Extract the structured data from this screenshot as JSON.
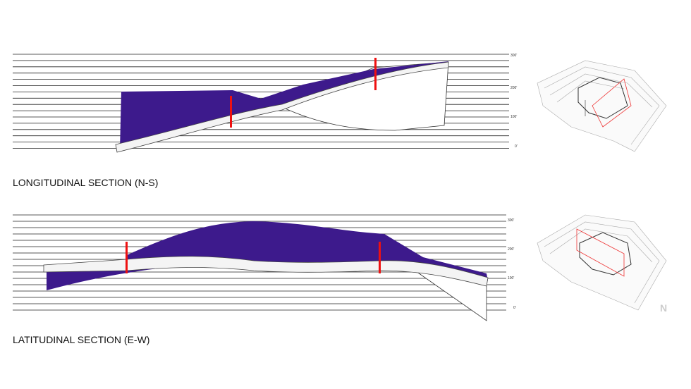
{
  "sections": [
    {
      "title": "LONGITUDINAL SECTION (N-S)",
      "levels": [
        "300'",
        "200'",
        "100'",
        "0'"
      ]
    },
    {
      "title": "LATITUDINAL SECTION  (E-W)",
      "levels": [
        "300'",
        "200'",
        "100'",
        "0'"
      ]
    }
  ],
  "north": "N"
}
